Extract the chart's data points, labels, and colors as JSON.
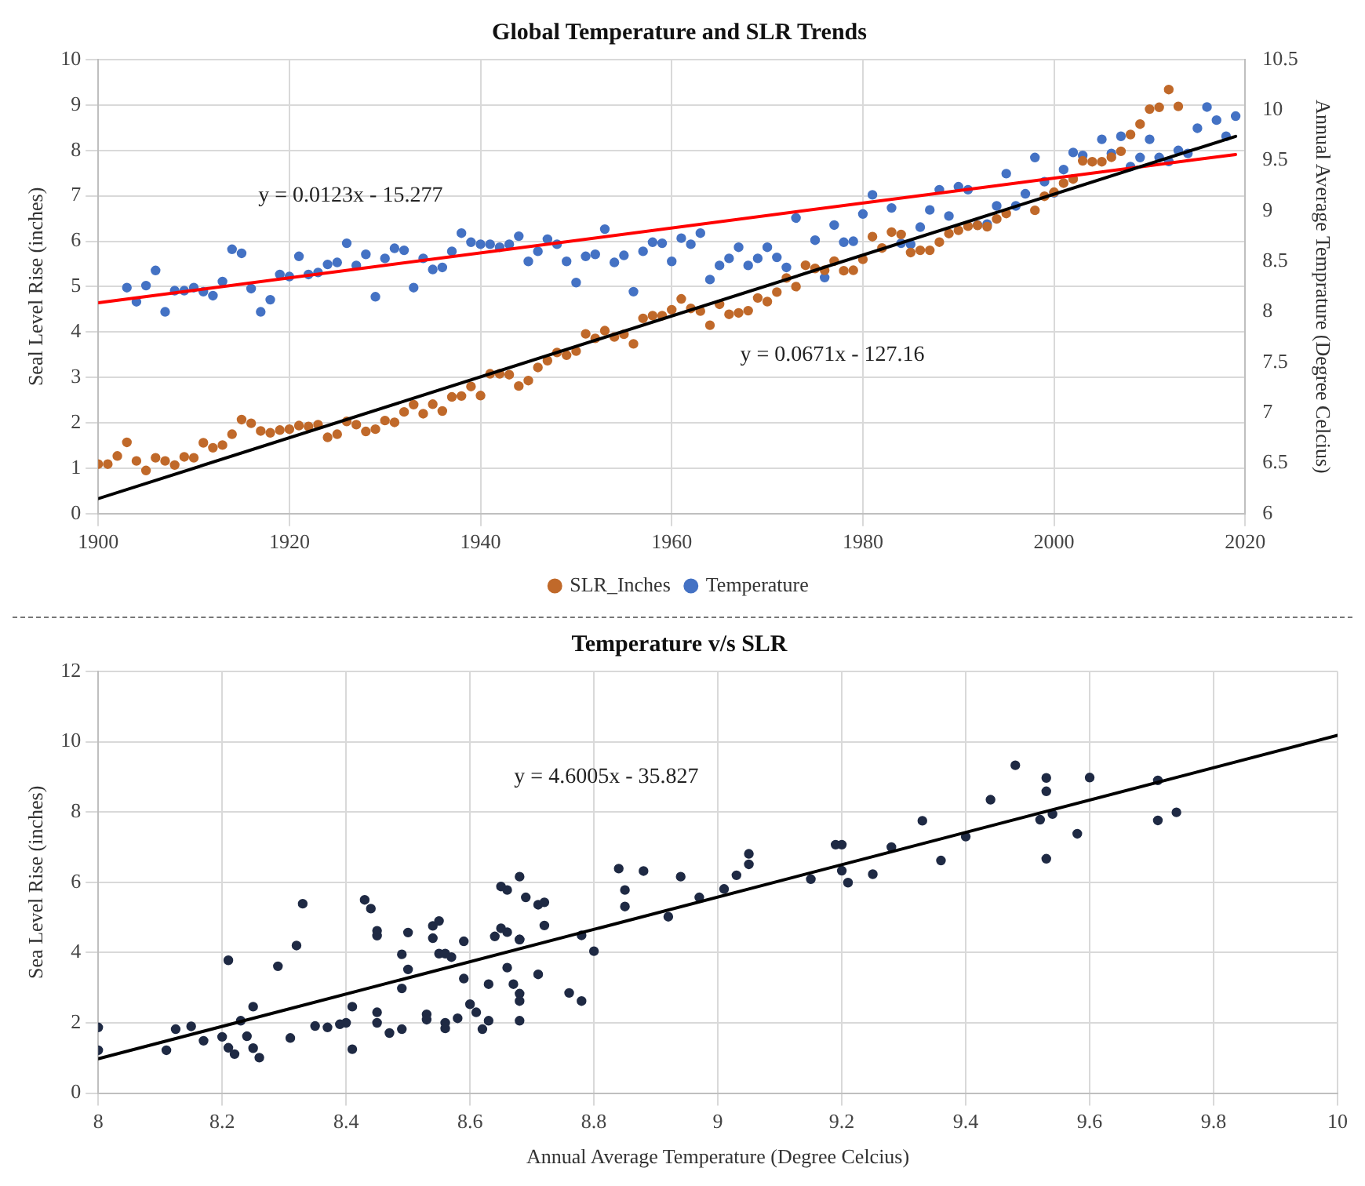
{
  "chart_data": [
    {
      "type": "scatter",
      "title": "Global Temperature and SLR Trends",
      "ylabel": "Seal Level Rise (inches)",
      "y2label": "Annual Average Temprature (Degree Celcius)",
      "xlim": [
        1900,
        2020
      ],
      "xticks": [
        1900,
        1920,
        1940,
        1960,
        1980,
        2000,
        2020
      ],
      "ylim": [
        0,
        10
      ],
      "yticks": [
        0,
        1,
        2,
        3,
        4,
        5,
        6,
        7,
        8,
        9,
        10
      ],
      "y2lim": [
        6,
        10.5
      ],
      "y2ticks": [
        6,
        6.5,
        7,
        7.5,
        8,
        8.5,
        9,
        9.5,
        10,
        10.5
      ],
      "grid": true,
      "legend": "bottom",
      "annotations": [
        "y = 0.0123x - 15.277",
        "y = 0.0671x - 127.16"
      ],
      "series": [
        {
          "name": "SLR_Inches",
          "color": "#c0692a",
          "marker": "circle",
          "x": [
            1900,
            1901,
            1902,
            1903,
            1904,
            1905,
            1906,
            1907,
            1908,
            1909,
            1910,
            1911,
            1912,
            1913,
            1914,
            1915,
            1916,
            1917,
            1918,
            1919,
            1920,
            1921,
            1922,
            1923,
            1924,
            1925,
            1926,
            1927,
            1928,
            1929,
            1930,
            1931,
            1932,
            1933,
            1934,
            1935,
            1936,
            1937,
            1938,
            1939,
            1940,
            1941,
            1942,
            1943,
            1944,
            1945,
            1946,
            1947,
            1948,
            1949,
            1950,
            1951,
            1952,
            1953,
            1954,
            1955,
            1956,
            1957,
            1958,
            1959,
            1960,
            1961,
            1962,
            1963,
            1964,
            1965,
            1966,
            1967,
            1968,
            1969,
            1970,
            1971,
            1972,
            1973,
            1974,
            1975,
            1976,
            1977,
            1978,
            1979,
            1980,
            1981,
            1982,
            1983,
            1984,
            1985,
            1986,
            1987,
            1988,
            1989,
            1990,
            1991,
            1992,
            1993,
            1994,
            1995,
            1998,
            1999,
            2000,
            2001,
            2002,
            2003,
            2004,
            2005,
            2006,
            2007,
            2008,
            2009,
            2010,
            2011,
            2012,
            2013
          ],
          "values": [
            1.09,
            1.09,
            1.27,
            1.57,
            1.16,
            0.95,
            1.23,
            1.16,
            1.07,
            1.25,
            1.23,
            1.56,
            1.45,
            1.51,
            1.75,
            2.07,
            1.99,
            1.82,
            1.78,
            1.84,
            1.86,
            1.94,
            1.92,
            1.96,
            1.68,
            1.75,
            2.03,
            1.96,
            1.81,
            1.86,
            2.05,
            2.01,
            2.24,
            2.4,
            2.2,
            2.41,
            2.26,
            2.57,
            2.59,
            2.8,
            2.6,
            3.08,
            3.08,
            3.06,
            2.81,
            2.93,
            3.22,
            3.37,
            3.55,
            3.49,
            3.58,
            3.96,
            3.86,
            4.03,
            3.89,
            3.95,
            3.74,
            4.3,
            4.36,
            4.36,
            4.49,
            4.73,
            4.52,
            4.46,
            4.15,
            4.61,
            4.39,
            4.42,
            4.47,
            4.75,
            4.67,
            4.88,
            5.19,
            5.0,
            5.47,
            5.4,
            5.36,
            5.56,
            5.35,
            5.36,
            5.6,
            6.1,
            5.85,
            6.2,
            6.15,
            5.75,
            5.8,
            5.8,
            5.98,
            6.17,
            6.24,
            6.33,
            6.35,
            6.32,
            6.49,
            6.61,
            6.68,
            6.99,
            7.08,
            7.28,
            7.37,
            7.77,
            7.75,
            7.75,
            7.85,
            7.98,
            8.35,
            8.58,
            8.91,
            8.95,
            9.34,
            8.97
          ]
        },
        {
          "name": "Temperature",
          "color": "#4472c4",
          "axis": "y2",
          "marker": "circle",
          "x": [
            1903,
            1904,
            1905,
            1906,
            1907,
            1908,
            1909,
            1910,
            1911,
            1912,
            1913,
            1914,
            1915,
            1916,
            1917,
            1918,
            1919,
            1920,
            1921,
            1922,
            1923,
            1924,
            1925,
            1926,
            1927,
            1928,
            1929,
            1930,
            1931,
            1932,
            1933,
            1934,
            1935,
            1936,
            1937,
            1938,
            1939,
            1940,
            1941,
            1942,
            1943,
            1944,
            1945,
            1946,
            1947,
            1948,
            1949,
            1950,
            1951,
            1952,
            1953,
            1954,
            1955,
            1956,
            1957,
            1958,
            1959,
            1960,
            1961,
            1962,
            1963,
            1964,
            1965,
            1966,
            1967,
            1968,
            1969,
            1970,
            1971,
            1972,
            1973,
            1975,
            1976,
            1977,
            1978,
            1979,
            1980,
            1981,
            1983,
            1984,
            1985,
            1986,
            1987,
            1988,
            1989,
            1990,
            1991,
            1992,
            1993,
            1994,
            1995,
            1996,
            1997,
            1998,
            1999,
            2000,
            2001,
            2002,
            2003,
            2005,
            2006,
            2007,
            2008,
            2009,
            2010,
            2011,
            2012,
            2013,
            2014,
            2015,
            2016,
            2017,
            2018,
            2019
          ],
          "values": [
            8.24,
            8.1,
            8.26,
            8.41,
            8.0,
            8.21,
            8.21,
            8.24,
            8.2,
            8.16,
            8.3,
            8.62,
            8.58,
            8.23,
            8.0,
            8.12,
            8.37,
            8.35,
            8.55,
            8.37,
            8.39,
            8.47,
            8.49,
            8.68,
            8.46,
            8.57,
            8.15,
            8.53,
            8.63,
            8.61,
            8.24,
            8.53,
            8.42,
            8.44,
            8.6,
            8.78,
            8.69,
            8.67,
            8.67,
            8.64,
            8.67,
            8.75,
            8.5,
            8.6,
            8.72,
            8.67,
            8.5,
            8.29,
            8.55,
            8.57,
            8.82,
            8.49,
            8.56,
            8.2,
            8.6,
            8.69,
            8.68,
            8.5,
            8.73,
            8.67,
            8.78,
            8.32,
            8.46,
            8.53,
            8.64,
            8.46,
            8.53,
            8.64,
            8.54,
            8.44,
            8.93,
            8.71,
            8.34,
            8.86,
            8.69,
            8.7,
            8.97,
            9.16,
            9.03,
            8.68,
            8.67,
            8.84,
            9.01,
            9.21,
            8.95,
            9.24,
            9.21,
            8.86,
            8.87,
            9.05,
            9.37,
            9.05,
            9.17,
            9.53,
            9.29,
            9.18,
            9.41,
            9.58,
            9.55,
            9.71,
            9.57,
            9.74,
            9.44,
            9.53,
            9.71,
            9.53,
            9.49,
            9.6,
            9.57,
            9.82,
            10.03,
            9.9,
            9.74,
            9.94
          ]
        },
        {
          "type": "line",
          "color": "#000000",
          "marker": "none",
          "x": [
            1900,
            2019
          ],
          "values": [
            0.33,
            8.31
          ]
        },
        {
          "type": "line",
          "color": "#ff0000",
          "marker": "none",
          "axis": "y2",
          "x": [
            1900,
            2019
          ],
          "values": [
            8.09,
            9.56
          ]
        }
      ]
    },
    {
      "type": "scatter",
      "title": "Temperature v/s SLR",
      "xlabel": "Annual Average Temperature (Degree Celcius)",
      "ylabel": "Sea Level Rise (inches)",
      "xlim": [
        8,
        10
      ],
      "xticks": [
        8,
        8.2,
        8.4,
        8.6,
        8.8,
        9,
        9.2,
        9.4,
        9.6,
        9.8,
        10
      ],
      "ylim": [
        0,
        12
      ],
      "yticks": [
        0,
        2,
        4,
        6,
        8,
        10,
        12
      ],
      "grid": true,
      "annotations": [
        "y = 4.6005x - 35.827"
      ],
      "series": [
        {
          "color": "#1f2a44",
          "marker": "circle",
          "x": [
            8.0,
            8.0,
            8.11,
            8.125,
            8.15,
            8.17,
            8.2,
            8.21,
            8.21,
            8.22,
            8.23,
            8.24,
            8.25,
            8.25,
            8.26,
            8.29,
            8.31,
            8.32,
            8.33,
            8.35,
            8.37,
            8.39,
            8.4,
            8.41,
            8.41,
            8.43,
            8.44,
            8.45,
            8.45,
            8.45,
            8.45,
            8.47,
            8.49,
            8.49,
            8.49,
            8.5,
            8.5,
            8.53,
            8.53,
            8.54,
            8.55,
            8.54,
            8.55,
            8.56,
            8.56,
            8.56,
            8.57,
            8.58,
            8.59,
            8.59,
            8.6,
            8.61,
            8.62,
            8.63,
            8.63,
            8.64,
            8.65,
            8.66,
            8.65,
            8.66,
            8.66,
            8.67,
            8.68,
            8.68,
            8.68,
            8.68,
            8.68,
            8.68,
            8.69,
            8.71,
            8.72,
            8.71,
            8.72,
            8.76,
            8.78,
            8.78,
            8.8,
            8.84,
            8.85,
            8.85,
            8.88,
            8.92,
            8.94,
            8.97,
            9.01,
            9.03,
            9.05,
            9.05,
            9.15,
            9.19,
            9.2,
            9.2,
            9.21,
            9.25,
            9.28,
            9.33,
            9.36,
            9.4,
            9.44,
            9.48,
            9.52,
            9.53,
            9.53,
            9.53,
            9.54,
            9.58,
            9.6,
            9.71,
            9.71,
            9.74
          ],
          "values": [
            1.87,
            1.22,
            1.22,
            1.82,
            1.9,
            1.49,
            1.6,
            3.78,
            1.29,
            1.11,
            2.06,
            1.62,
            2.46,
            1.28,
            1.01,
            3.61,
            1.57,
            4.2,
            5.39,
            1.91,
            1.87,
            1.96,
            2.0,
            1.25,
            2.46,
            5.5,
            5.25,
            4.48,
            4.62,
            2.3,
            2.0,
            1.71,
            1.82,
            3.95,
            2.98,
            3.52,
            4.57,
            2.24,
            2.09,
            4.76,
            4.9,
            4.41,
            3.97,
            3.97,
            2.0,
            1.84,
            3.87,
            2.13,
            4.32,
            3.26,
            2.53,
            2.3,
            1.82,
            2.06,
            3.1,
            4.46,
            5.88,
            5.78,
            4.69,
            3.57,
            4.58,
            3.1,
            4.37,
            2.62,
            2.06,
            2.83,
            4.37,
            6.16,
            5.57,
            5.36,
            5.43,
            3.38,
            4.77,
            2.85,
            2.62,
            4.49,
            4.04,
            6.39,
            5.78,
            5.31,
            6.32,
            5.02,
            6.16,
            5.57,
            5.81,
            6.2,
            6.81,
            6.51,
            6.09,
            7.07,
            7.07,
            6.33,
            5.99,
            6.23,
            7.0,
            7.75,
            6.62,
            7.3,
            8.35,
            9.33,
            7.78,
            8.97,
            6.67,
            8.59,
            7.94,
            7.38,
            8.98,
            8.9,
            7.76,
            7.99
          ]
        },
        {
          "type": "line",
          "color": "#000000",
          "marker": "none",
          "x": [
            8,
            10
          ],
          "values": [
            0.98,
            10.18
          ]
        }
      ]
    }
  ]
}
